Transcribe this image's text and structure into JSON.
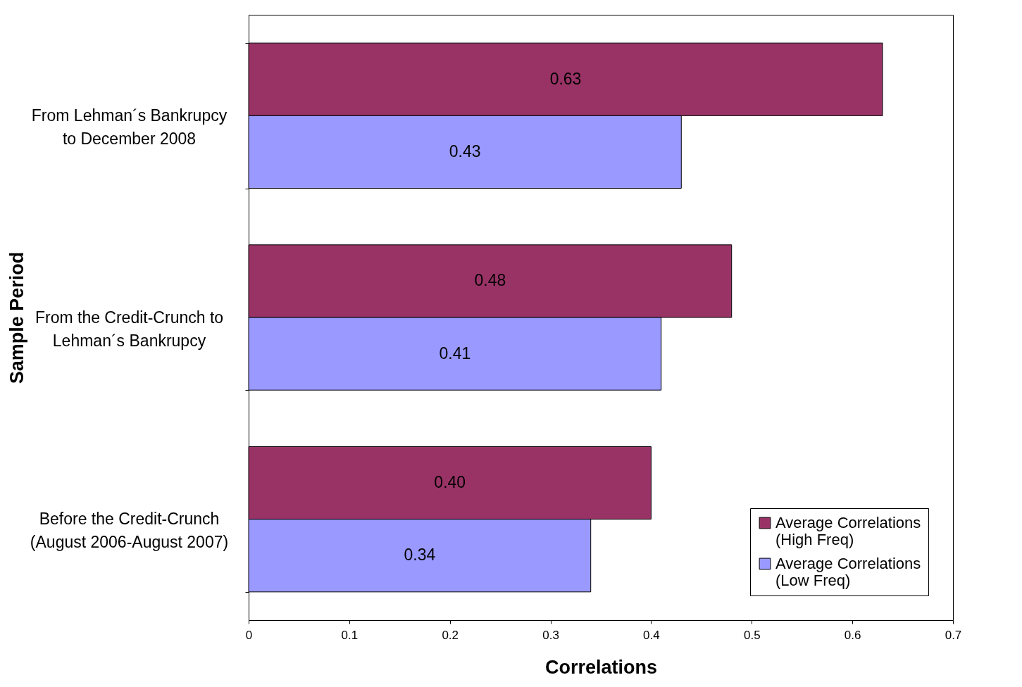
{
  "chart_data": {
    "type": "bar",
    "orientation": "horizontal",
    "xlabel": "Correlations",
    "ylabel": "Sample Period",
    "categories": [
      "From Lehman´s Bankrupcy to December 2008",
      "From the Credit-Crunch to Lehman´s Bankrupcy",
      "Before the Credit-Crunch (August 2006-August 2007)"
    ],
    "series": [
      {
        "name": "Average Correlations (High Freq)",
        "color": "#993366",
        "values": [
          0.63,
          0.48,
          0.4
        ],
        "value_labels": [
          "0.63",
          "0.48",
          "0.40"
        ]
      },
      {
        "name": "Average Correlations (Low Freq)",
        "color": "#9999ff",
        "values": [
          0.43,
          0.41,
          0.34
        ],
        "value_labels": [
          "0.43",
          "0.41",
          "0.34"
        ]
      }
    ],
    "xlim": [
      0,
      0.7
    ],
    "xticks": [
      0,
      0.1,
      0.2,
      0.3,
      0.4,
      0.5,
      0.6,
      0.7
    ],
    "grid": false,
    "legend": "bottom right"
  }
}
